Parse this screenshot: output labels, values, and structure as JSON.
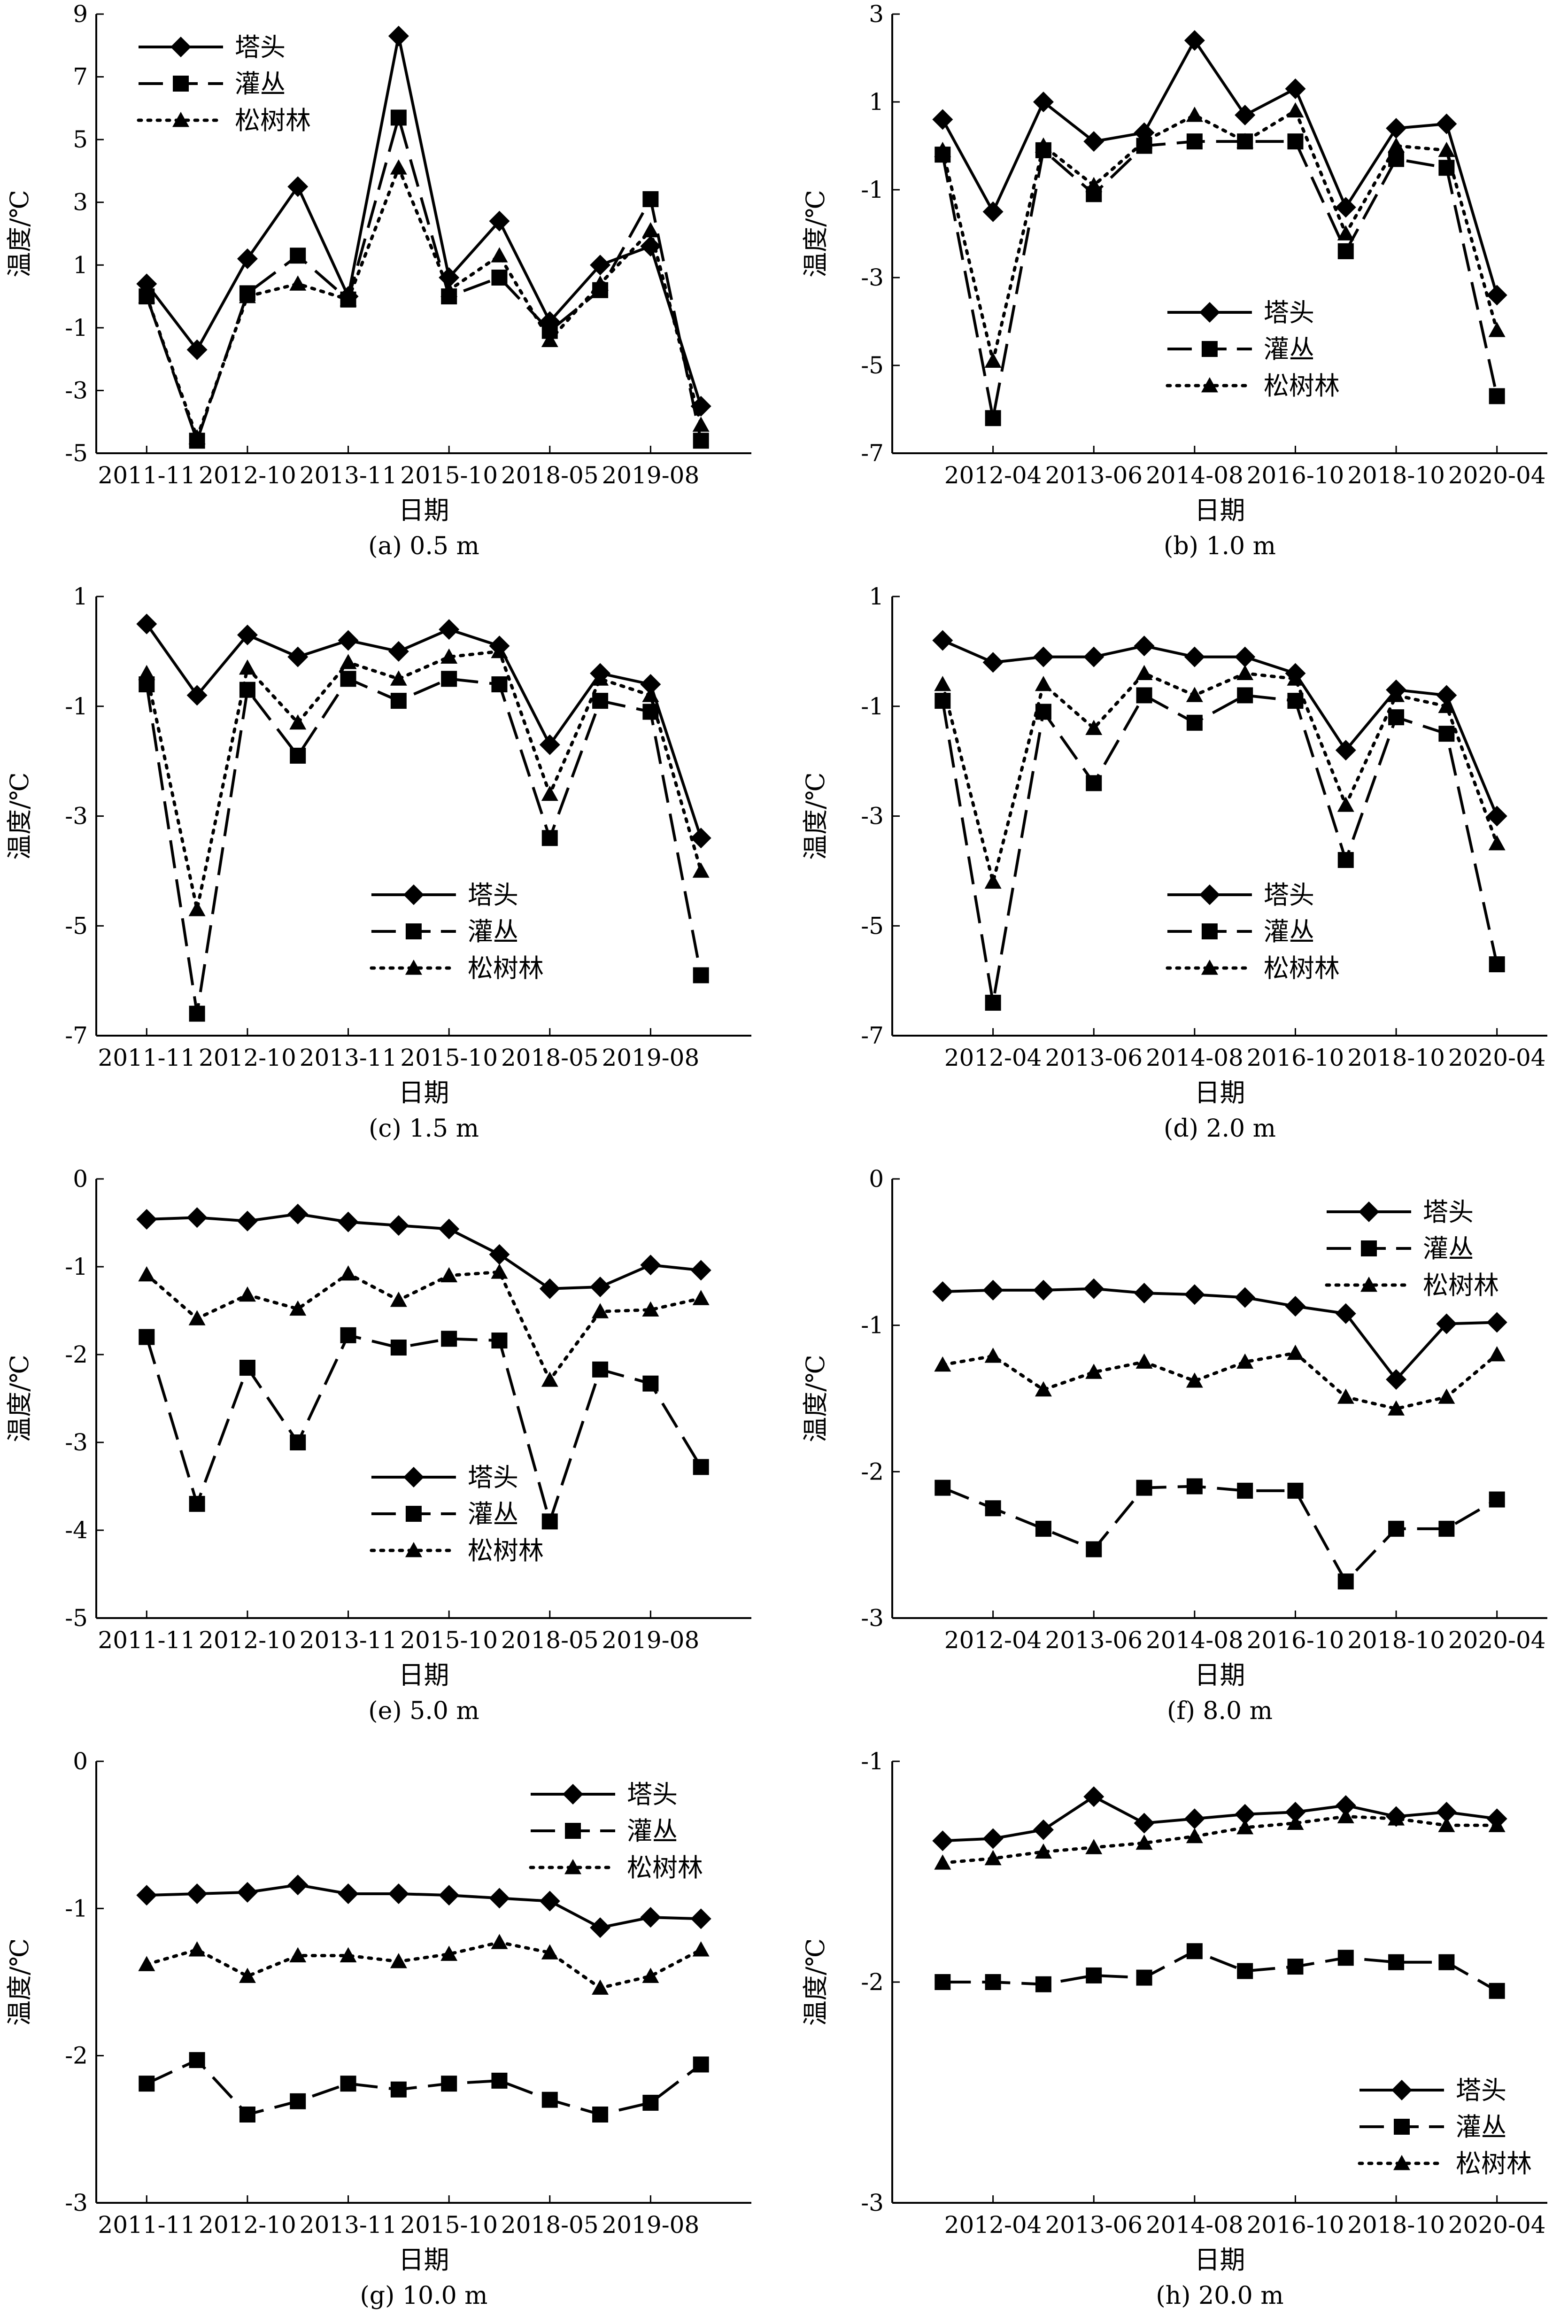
{
  "figure": {
    "legend_labels": [
      "塔头",
      "灌丛",
      "松树林"
    ],
    "series_styles": [
      {
        "name": "塔头",
        "marker": "diamond",
        "line": "solid"
      },
      {
        "name": "灌丛",
        "marker": "square",
        "line": "dashed"
      },
      {
        "name": "松树林",
        "marker": "triangle",
        "line": "dotted"
      }
    ],
    "colors": {
      "ink": "#000000",
      "background": "#ffffff"
    }
  },
  "chart_data": [
    {
      "type": "line",
      "caption": "(a) 0.5 m",
      "xlabel": "日期",
      "ylabel": "温度/℃",
      "ylim": [
        -5,
        9
      ],
      "yticks": [
        -5,
        -3,
        -1,
        1,
        3,
        5,
        7,
        9
      ],
      "n_points": 12,
      "xtick_labels": [
        {
          "index": 0,
          "label": "2011-11"
        },
        {
          "index": 2,
          "label": "2012-10"
        },
        {
          "index": 4,
          "label": "2013-11"
        },
        {
          "index": 6,
          "label": "2015-10"
        },
        {
          "index": 8,
          "label": "2018-05"
        },
        {
          "index": 10,
          "label": "2019-08"
        }
      ],
      "legend_position": "top-left",
      "series": [
        {
          "name": "塔头",
          "values": [
            0.4,
            -1.7,
            1.2,
            3.5,
            0.0,
            8.3,
            0.6,
            2.4,
            -0.8,
            1.0,
            1.6,
            -3.5
          ]
        },
        {
          "name": "灌丛",
          "values": [
            0.0,
            -4.6,
            0.1,
            1.3,
            -0.1,
            5.7,
            0.0,
            0.6,
            -1.1,
            0.2,
            3.1,
            -4.6
          ]
        },
        {
          "name": "松树林",
          "values": [
            0.0,
            -4.5,
            0.0,
            0.4,
            -0.1,
            4.1,
            0.2,
            1.3,
            -1.4,
            0.4,
            2.1,
            -4.1
          ]
        }
      ]
    },
    {
      "type": "line",
      "caption": "(b) 1.0 m",
      "xlabel": "日期",
      "ylabel": "温度/℃",
      "ylim": [
        -7,
        3
      ],
      "yticks": [
        -7,
        -5,
        -3,
        -1,
        1,
        3
      ],
      "n_points": 12,
      "xtick_labels": [
        {
          "index": 1,
          "label": "2012-04"
        },
        {
          "index": 3,
          "label": "2013-06"
        },
        {
          "index": 5,
          "label": "2014-08"
        },
        {
          "index": 7,
          "label": "2016-10"
        },
        {
          "index": 9,
          "label": "2018-10"
        },
        {
          "index": 11,
          "label": "2020-04"
        }
      ],
      "legend_position": "bottom-center",
      "series": [
        {
          "name": "塔头",
          "values": [
            0.6,
            -1.5,
            1.0,
            0.1,
            0.3,
            2.4,
            0.7,
            1.3,
            -1.4,
            0.4,
            0.5,
            -3.4
          ]
        },
        {
          "name": "灌丛",
          "values": [
            -0.2,
            -6.2,
            -0.1,
            -1.1,
            0.0,
            0.1,
            0.1,
            0.1,
            -2.4,
            -0.3,
            -0.5,
            -5.7
          ]
        },
        {
          "name": "松树林",
          "values": [
            -0.1,
            -4.9,
            0.0,
            -0.9,
            0.1,
            0.7,
            0.1,
            0.8,
            -2.0,
            0.0,
            -0.1,
            -4.2
          ]
        }
      ]
    },
    {
      "type": "line",
      "caption": "(c) 1.5 m",
      "xlabel": "日期",
      "ylabel": "温度/℃",
      "ylim": [
        -7,
        1
      ],
      "yticks": [
        -7,
        -5,
        -3,
        -1,
        1
      ],
      "n_points": 12,
      "xtick_labels": [
        {
          "index": 0,
          "label": "2011-11"
        },
        {
          "index": 2,
          "label": "2012-10"
        },
        {
          "index": 4,
          "label": "2013-11"
        },
        {
          "index": 6,
          "label": "2015-10"
        },
        {
          "index": 8,
          "label": "2018-05"
        },
        {
          "index": 10,
          "label": "2019-08"
        }
      ],
      "legend_position": "bottom-center",
      "series": [
        {
          "name": "塔头",
          "values": [
            0.5,
            -0.8,
            0.3,
            -0.1,
            0.2,
            0.0,
            0.4,
            0.1,
            -1.7,
            -0.4,
            -0.6,
            -3.4
          ]
        },
        {
          "name": "灌丛",
          "values": [
            -0.6,
            -6.6,
            -0.7,
            -1.9,
            -0.5,
            -0.9,
            -0.5,
            -0.6,
            -3.4,
            -0.9,
            -1.1,
            -5.9
          ]
        },
        {
          "name": "松树林",
          "values": [
            -0.4,
            -4.7,
            -0.3,
            -1.3,
            -0.2,
            -0.5,
            -0.1,
            0.0,
            -2.6,
            -0.5,
            -0.8,
            -4.0
          ]
        }
      ]
    },
    {
      "type": "line",
      "caption": "(d) 2.0 m",
      "xlabel": "日期",
      "ylabel": "温度/℃",
      "ylim": [
        -7,
        1
      ],
      "yticks": [
        -7,
        -5,
        -3,
        -1,
        1
      ],
      "n_points": 12,
      "xtick_labels": [
        {
          "index": 1,
          "label": "2012-04"
        },
        {
          "index": 3,
          "label": "2013-06"
        },
        {
          "index": 5,
          "label": "2014-08"
        },
        {
          "index": 7,
          "label": "2016-10"
        },
        {
          "index": 9,
          "label": "2018-10"
        },
        {
          "index": 11,
          "label": "2020-04"
        }
      ],
      "legend_position": "bottom-center",
      "series": [
        {
          "name": "塔头",
          "values": [
            0.2,
            -0.2,
            -0.1,
            -0.1,
            0.1,
            -0.1,
            -0.1,
            -0.4,
            -1.8,
            -0.7,
            -0.8,
            -3.0
          ]
        },
        {
          "name": "灌丛",
          "values": [
            -0.9,
            -6.4,
            -1.1,
            -2.4,
            -0.8,
            -1.3,
            -0.8,
            -0.9,
            -3.8,
            -1.2,
            -1.5,
            -5.7
          ]
        },
        {
          "name": "松树林",
          "values": [
            -0.6,
            -4.2,
            -0.6,
            -1.4,
            -0.4,
            -0.8,
            -0.4,
            -0.5,
            -2.8,
            -0.8,
            -1.0,
            -3.5
          ]
        }
      ]
    },
    {
      "type": "line",
      "caption": "(e) 5.0 m",
      "xlabel": "日期",
      "ylabel": "温度/℃",
      "ylim": [
        -5,
        0
      ],
      "yticks": [
        -5,
        -4,
        -3,
        -2,
        -1,
        0
      ],
      "n_points": 12,
      "xtick_labels": [
        {
          "index": 0,
          "label": "2011-11"
        },
        {
          "index": 2,
          "label": "2012-10"
        },
        {
          "index": 4,
          "label": "2013-11"
        },
        {
          "index": 6,
          "label": "2015-10"
        },
        {
          "index": 8,
          "label": "2018-05"
        },
        {
          "index": 10,
          "label": "2019-08"
        }
      ],
      "legend_position": "bottom-center",
      "series": [
        {
          "name": "塔头",
          "values": [
            -0.46,
            -0.44,
            -0.48,
            -0.4,
            -0.49,
            -0.53,
            -0.57,
            -0.86,
            -1.25,
            -1.23,
            -0.98,
            -1.04
          ]
        },
        {
          "name": "灌丛",
          "values": [
            -1.8,
            -3.7,
            -2.15,
            -3.0,
            -1.78,
            -1.92,
            -1.82,
            -1.84,
            -3.9,
            -2.17,
            -2.33,
            -3.28
          ]
        },
        {
          "name": "松树林",
          "values": [
            -1.09,
            -1.59,
            -1.32,
            -1.48,
            -1.08,
            -1.38,
            -1.1,
            -1.06,
            -2.29,
            -1.51,
            -1.49,
            -1.36
          ]
        }
      ]
    },
    {
      "type": "line",
      "caption": "(f) 8.0 m",
      "xlabel": "日期",
      "ylabel": "温度/℃",
      "ylim": [
        -3,
        0
      ],
      "yticks": [
        -3,
        -2,
        -1,
        0
      ],
      "n_points": 12,
      "xtick_labels": [
        {
          "index": 1,
          "label": "2012-04"
        },
        {
          "index": 3,
          "label": "2013-06"
        },
        {
          "index": 5,
          "label": "2014-08"
        },
        {
          "index": 7,
          "label": "2016-10"
        },
        {
          "index": 9,
          "label": "2018-10"
        },
        {
          "index": 11,
          "label": "2020-04"
        }
      ],
      "legend_position": "top-right",
      "series": [
        {
          "name": "塔头",
          "values": [
            -0.77,
            -0.76,
            -0.76,
            -0.75,
            -0.78,
            -0.79,
            -0.81,
            -0.87,
            -0.92,
            -1.37,
            -0.99,
            -0.98
          ]
        },
        {
          "name": "灌丛",
          "values": [
            -2.11,
            -2.25,
            -2.39,
            -2.53,
            -2.11,
            -2.1,
            -2.13,
            -2.13,
            -2.75,
            -2.39,
            -2.39,
            -2.19
          ]
        },
        {
          "name": "松树林",
          "values": [
            -1.27,
            -1.21,
            -1.44,
            -1.32,
            -1.25,
            -1.38,
            -1.25,
            -1.19,
            -1.49,
            -1.57,
            -1.49,
            -1.2
          ]
        }
      ]
    },
    {
      "type": "line",
      "caption": "(g) 10.0 m",
      "xlabel": "日期",
      "ylabel": "温度/℃",
      "ylim": [
        -3,
        0
      ],
      "yticks": [
        -3,
        -2,
        -1,
        0
      ],
      "n_points": 12,
      "xtick_labels": [
        {
          "index": 0,
          "label": "2011-11"
        },
        {
          "index": 2,
          "label": "2012-10"
        },
        {
          "index": 4,
          "label": "2013-11"
        },
        {
          "index": 6,
          "label": "2015-10"
        },
        {
          "index": 8,
          "label": "2018-05"
        },
        {
          "index": 10,
          "label": "2019-08"
        }
      ],
      "legend_position": "top-right",
      "series": [
        {
          "name": "塔头",
          "values": [
            -0.91,
            -0.9,
            -0.89,
            -0.84,
            -0.9,
            -0.9,
            -0.91,
            -0.93,
            -0.95,
            -1.13,
            -1.06,
            -1.07
          ]
        },
        {
          "name": "灌丛",
          "values": [
            -2.19,
            -2.03,
            -2.4,
            -2.31,
            -2.19,
            -2.23,
            -2.19,
            -2.17,
            -2.3,
            -2.4,
            -2.32,
            -2.06
          ]
        },
        {
          "name": "松树林",
          "values": [
            -1.38,
            -1.28,
            -1.46,
            -1.32,
            -1.32,
            -1.36,
            -1.31,
            -1.23,
            -1.3,
            -1.54,
            -1.46,
            -1.28
          ]
        }
      ]
    },
    {
      "type": "line",
      "caption": "(h) 20.0 m",
      "xlabel": "日期",
      "ylabel": "温度/℃",
      "ylim": [
        -3,
        -1
      ],
      "yticks": [
        -3,
        -2,
        -1
      ],
      "n_points": 12,
      "xtick_labels": [
        {
          "index": 1,
          "label": "2012-04"
        },
        {
          "index": 3,
          "label": "2013-06"
        },
        {
          "index": 5,
          "label": "2014-08"
        },
        {
          "index": 7,
          "label": "2016-10"
        },
        {
          "index": 9,
          "label": "2018-10"
        },
        {
          "index": 11,
          "label": "2020-04"
        }
      ],
      "legend_position": "bottom-right",
      "series": [
        {
          "name": "塔头",
          "values": [
            -1.36,
            -1.35,
            -1.31,
            -1.16,
            -1.28,
            -1.26,
            -1.24,
            -1.23,
            -1.2,
            -1.25,
            -1.23,
            -1.26
          ]
        },
        {
          "name": "灌丛",
          "values": [
            -2.0,
            -2.0,
            -2.01,
            -1.97,
            -1.98,
            -1.86,
            -1.95,
            -1.93,
            -1.89,
            -1.91,
            -1.91,
            -2.04
          ]
        },
        {
          "name": "松树林",
          "values": [
            -1.46,
            -1.44,
            -1.41,
            -1.39,
            -1.37,
            -1.34,
            -1.3,
            -1.28,
            -1.25,
            -1.26,
            -1.29,
            -1.29
          ]
        }
      ]
    }
  ]
}
